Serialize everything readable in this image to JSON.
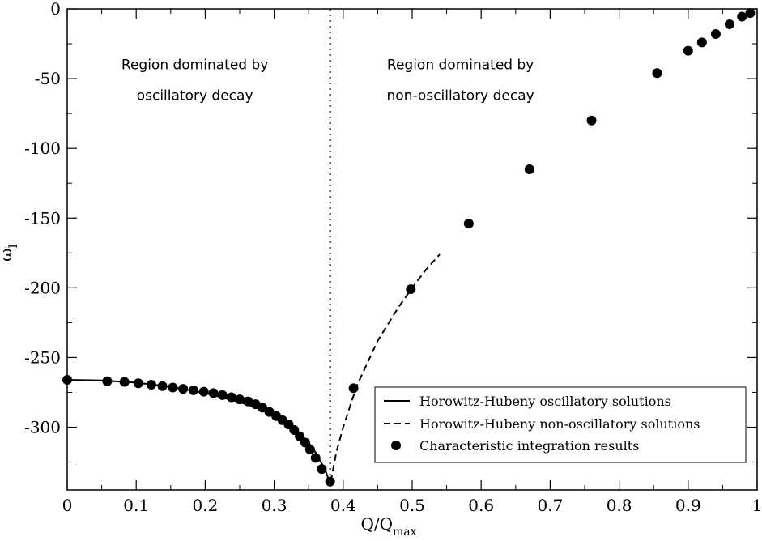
{
  "chart_data": {
    "type": "scatter",
    "title": "",
    "xlabel": "Q/Q",
    "xlabel_sub": "max",
    "ylabel": "ω",
    "ylabel_sub": "I",
    "xlim": [
      0,
      1
    ],
    "ylim": [
      -345,
      0
    ],
    "x_ticks": [
      0,
      0.1,
      0.2,
      0.3,
      0.4,
      0.5,
      0.6,
      0.7,
      0.8,
      0.9,
      1
    ],
    "x_tick_labels": [
      "0",
      "0.1",
      "0.2",
      "0.3",
      "0.4",
      "0.5",
      "0.6",
      "0.7",
      "0.8",
      "0.9",
      "1"
    ],
    "y_ticks": [
      0,
      -50,
      -100,
      -150,
      -200,
      -250,
      -300
    ],
    "y_tick_labels": [
      "0",
      "-50",
      "-100",
      "-150",
      "-200",
      "-250",
      "-300"
    ],
    "divider_x": 0.381,
    "annotations": [
      {
        "lines": [
          "Region dominated by",
          "oscillatory decay"
        ],
        "x": 0.185,
        "y": -45
      },
      {
        "lines": [
          "Region dominated by",
          "non-oscillatory decay"
        ],
        "x": 0.57,
        "y": -45
      }
    ],
    "series": [
      {
        "name": "Horowitz-Hubeny oscillatory solutions",
        "style": "solid-line",
        "x": [
          0,
          0.05,
          0.1,
          0.15,
          0.2,
          0.25,
          0.28,
          0.31,
          0.33,
          0.35,
          0.36,
          0.37,
          0.375,
          0.38
        ],
        "y": [
          -266,
          -266.5,
          -268,
          -271,
          -275.5,
          -282,
          -287,
          -294,
          -301,
          -311,
          -318,
          -327,
          -332,
          -339
        ]
      },
      {
        "name": "Horowitz-Hubeny non-oscillatory solutions",
        "style": "dashed-line",
        "x": [
          0.382,
          0.39,
          0.4,
          0.42,
          0.45,
          0.48,
          0.5,
          0.52,
          0.54
        ],
        "y": [
          -339,
          -318,
          -300,
          -270,
          -238,
          -214,
          -200,
          -187,
          -176
        ]
      },
      {
        "name": "Characteristic integration results",
        "style": "marker",
        "x": [
          0,
          0.058,
          0.083,
          0.103,
          0.122,
          0.138,
          0.153,
          0.168,
          0.183,
          0.198,
          0.212,
          0.225,
          0.238,
          0.25,
          0.262,
          0.273,
          0.283,
          0.293,
          0.303,
          0.312,
          0.321,
          0.329,
          0.337,
          0.345,
          0.352,
          0.36,
          0.369,
          0.381,
          0.415,
          0.498,
          0.582,
          0.67,
          0.76,
          0.855,
          0.9,
          0.92,
          0.94,
          0.96,
          0.978,
          0.99
        ],
        "y": [
          -266,
          -267,
          -267.5,
          -268.5,
          -269.5,
          -270.5,
          -271.5,
          -272.5,
          -273.5,
          -274.5,
          -275.5,
          -277,
          -278.5,
          -280,
          -281.5,
          -283.5,
          -286,
          -289,
          -292,
          -295,
          -298,
          -302,
          -306.5,
          -311,
          -316,
          -322,
          -330,
          -339,
          -272,
          -201,
          -154,
          -115,
          -80,
          -46,
          -30,
          -24,
          -18,
          -11,
          -5.5,
          -3
        ]
      }
    ],
    "legend": {
      "position": "bottom-right",
      "entries": [
        "Horowitz-Hubeny oscillatory solutions",
        "Horowitz-Hubeny non-oscillatory solutions",
        "Characteristic integration results"
      ]
    }
  }
}
